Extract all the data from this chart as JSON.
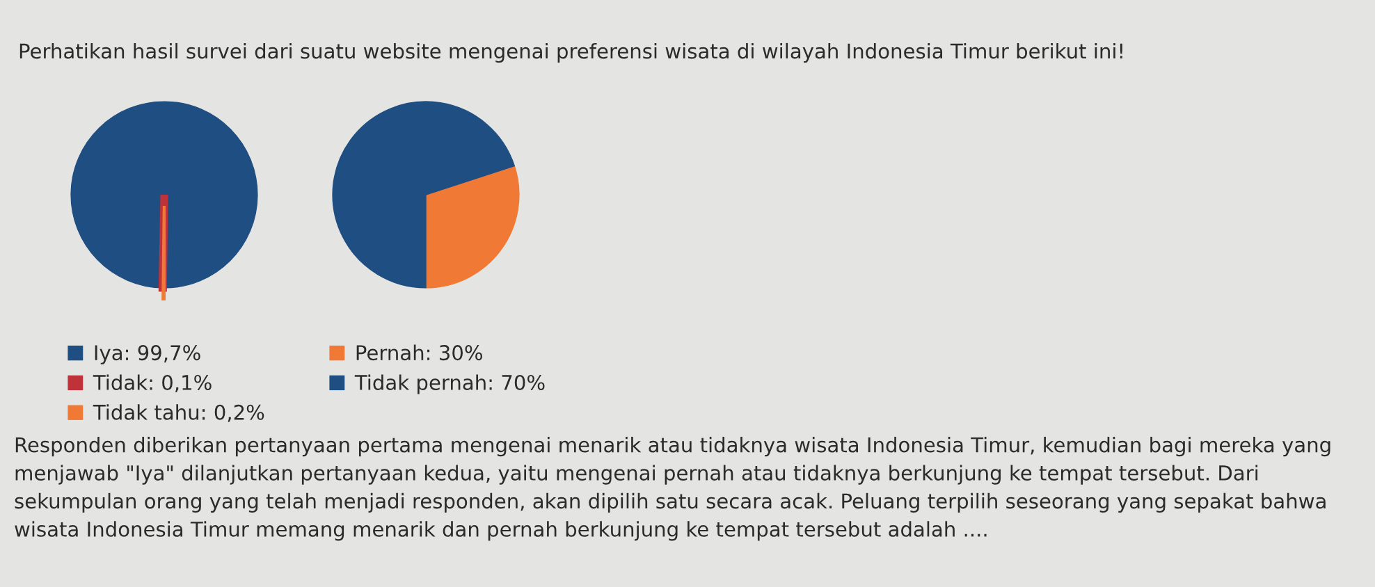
{
  "chart_data": [
    {
      "type": "other",
      "title": "Perhatikan hasil survei dari suatu website mengenai preferensi wisata di wilayah Indonesia Timur berikut ini!",
      "annotations": [
        "Responden diberikan pertanyaan pertama mengenai menarik atau tidaknya wisata Indonesia Timur, kemudian bagi mereka yang menjawab \"Iya\" dilanjutkan pertanyaan kedua, yaitu mengenai pernah atau tidaknya berkunjung ke tempat tersebut. Dari sekumpulan orang yang telah menjadi responden, akan dipilih satu secara acak. Peluang terpilih seseorang yang sepakat bahwa wisata Indonesia Timur memang menarik dan pernah berkunjung ke tempat tersebut adalah ...."
      ]
    },
    {
      "type": "pie",
      "categories": [
        "Iya: 99,7%",
        "Tidak: 0,1%",
        "Tidak tahu: 0,2%"
      ],
      "values": [
        99.7,
        0.1,
        0.2
      ],
      "colors": [
        "#1f4e82",
        "#c0323a",
        "#f07a35"
      ],
      "legend": "bottom"
    },
    {
      "type": "pie",
      "categories": [
        "Pernah: 30%",
        "Tidak pernah: 70%"
      ],
      "values": [
        30,
        70
      ],
      "colors": [
        "#f07a35",
        "#1f4e82"
      ],
      "legend": "bottom"
    }
  ]
}
